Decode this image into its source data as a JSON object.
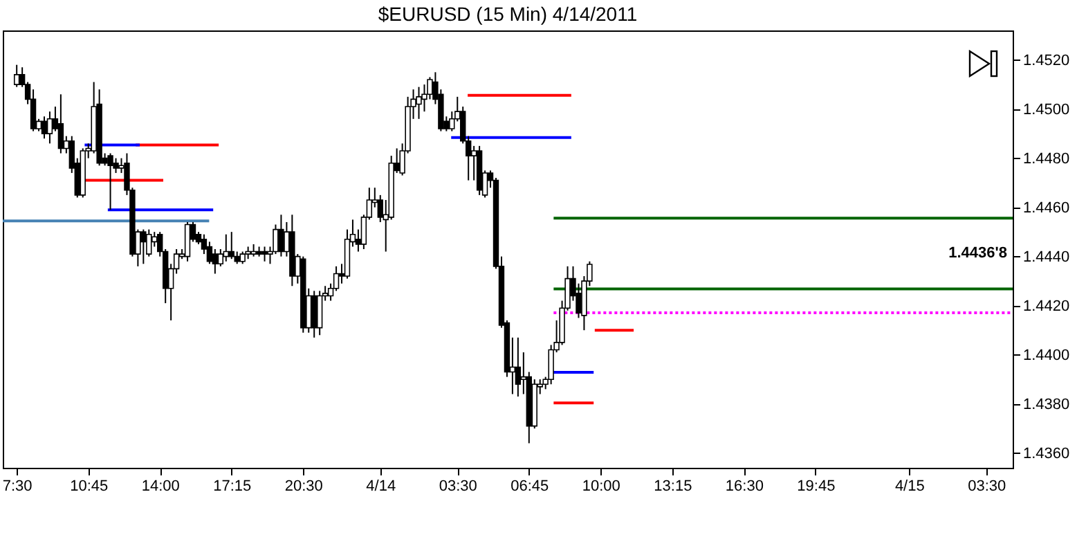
{
  "chart_data": {
    "type": "candlestick",
    "title": "$EURUSD (15 Min)  4/14/2011",
    "x": [
      "2011-04-13T07:30",
      "2011-04-13T07:45",
      "2011-04-13T08:00",
      "2011-04-13T08:15",
      "2011-04-13T08:30",
      "2011-04-13T08:45",
      "2011-04-13T09:00",
      "2011-04-13T09:15",
      "2011-04-13T09:30",
      "2011-04-13T09:45",
      "2011-04-13T10:00",
      "2011-04-13T10:15",
      "2011-04-13T10:30",
      "2011-04-13T10:45",
      "2011-04-13T11:00",
      "2011-04-13T11:15",
      "2011-04-13T11:30",
      "2011-04-13T11:45",
      "2011-04-13T12:00",
      "2011-04-13T12:15",
      "2011-04-13T12:30",
      "2011-04-13T12:45",
      "2011-04-13T13:00",
      "2011-04-13T13:15",
      "2011-04-13T13:30",
      "2011-04-13T13:45",
      "2011-04-13T14:00",
      "2011-04-13T14:15",
      "2011-04-13T14:30",
      "2011-04-13T14:45",
      "2011-04-13T15:00",
      "2011-04-13T15:15",
      "2011-04-13T15:30",
      "2011-04-13T15:45",
      "2011-04-13T16:00",
      "2011-04-13T16:15",
      "2011-04-13T16:30",
      "2011-04-13T16:45",
      "2011-04-13T17:00",
      "2011-04-13T17:15",
      "2011-04-13T17:30",
      "2011-04-13T17:45",
      "2011-04-13T18:00",
      "2011-04-13T18:15",
      "2011-04-13T18:30",
      "2011-04-13T18:45",
      "2011-04-13T19:00",
      "2011-04-13T19:15",
      "2011-04-13T19:30",
      "2011-04-13T19:45",
      "2011-04-13T20:00",
      "2011-04-13T20:15",
      "2011-04-13T20:30",
      "2011-04-13T20:45",
      "2011-04-13T21:00",
      "2011-04-13T21:15",
      "2011-04-13T21:30",
      "2011-04-13T21:45",
      "2011-04-13T22:00",
      "2011-04-13T22:15",
      "2011-04-13T22:30",
      "2011-04-13T22:45",
      "2011-04-13T23:00",
      "2011-04-13T23:15",
      "2011-04-13T23:30",
      "2011-04-13T23:45",
      "2011-04-14T00:00",
      "2011-04-14T00:15",
      "2011-04-14T00:30",
      "2011-04-14T00:45",
      "2011-04-14T01:00",
      "2011-04-14T01:15",
      "2011-04-14T01:30",
      "2011-04-14T01:45",
      "2011-04-14T02:00",
      "2011-04-14T02:15",
      "2011-04-14T02:30",
      "2011-04-14T02:45",
      "2011-04-14T03:00",
      "2011-04-14T03:15",
      "2011-04-14T03:30",
      "2011-04-14T03:45",
      "2011-04-14T04:00",
      "2011-04-14T04:15",
      "2011-04-14T04:30",
      "2011-04-14T04:45",
      "2011-04-14T05:00",
      "2011-04-14T05:15",
      "2011-04-14T05:30",
      "2011-04-14T05:45",
      "2011-04-14T06:00",
      "2011-04-14T06:15",
      "2011-04-14T06:30",
      "2011-04-14T06:45",
      "2011-04-14T07:00",
      "2011-04-14T07:15",
      "2011-04-14T07:30",
      "2011-04-14T07:45",
      "2011-04-14T08:00",
      "2011-04-14T08:15",
      "2011-04-14T08:30",
      "2011-04-14T08:45",
      "2011-04-14T09:00",
      "2011-04-14T09:15",
      "2011-04-14T09:30"
    ],
    "ohlc": [
      [
        1.451,
        1.4518,
        1.4509,
        1.4514
      ],
      [
        1.4514,
        1.4517,
        1.4509,
        1.451
      ],
      [
        1.451,
        1.4511,
        1.4502,
        1.4504
      ],
      [
        1.4504,
        1.4508,
        1.4491,
        1.4492
      ],
      [
        1.4492,
        1.4496,
        1.4491,
        1.4495
      ],
      [
        1.4495,
        1.4497,
        1.4488,
        1.449
      ],
      [
        1.449,
        1.4499,
        1.4486,
        1.4496
      ],
      [
        1.4496,
        1.4501,
        1.4491,
        1.4492
      ],
      [
        1.4494,
        1.4506,
        1.4482,
        1.4484
      ],
      [
        1.4484,
        1.4489,
        1.4482,
        1.4487
      ],
      [
        1.4487,
        1.4489,
        1.4474,
        1.4476
      ],
      [
        1.4478,
        1.448,
        1.4464,
        1.4465
      ],
      [
        1.4465,
        1.4484,
        1.4464,
        1.4483
      ],
      [
        1.4483,
        1.4486,
        1.448,
        1.4484
      ],
      [
        1.4483,
        1.4511,
        1.4482,
        1.4501
      ],
      [
        1.4502,
        1.4508,
        1.4477,
        1.4478
      ],
      [
        1.448,
        1.4482,
        1.4477,
        1.4478
      ],
      [
        1.4481,
        1.4482,
        1.4459,
        1.4477
      ],
      [
        1.4478,
        1.448,
        1.4474,
        1.4476
      ],
      [
        1.4476,
        1.448,
        1.4474,
        1.4477
      ],
      [
        1.4478,
        1.4482,
        1.4465,
        1.4467
      ],
      [
        1.4467,
        1.4468,
        1.444,
        1.4441
      ],
      [
        1.4441,
        1.4451,
        1.4436,
        1.445
      ],
      [
        1.445,
        1.4451,
        1.4437,
        1.4446
      ],
      [
        1.4441,
        1.4451,
        1.444,
        1.4449
      ],
      [
        1.4446,
        1.445,
        1.4444,
        1.4448
      ],
      [
        1.4449,
        1.445,
        1.444,
        1.4442
      ],
      [
        1.4442,
        1.4443,
        1.4421,
        1.4427
      ],
      [
        1.4427,
        1.4437,
        1.4414,
        1.4435
      ],
      [
        1.4435,
        1.4443,
        1.4433,
        1.4441
      ],
      [
        1.444,
        1.4443,
        1.4439,
        1.4441
      ],
      [
        1.444,
        1.4454,
        1.4438,
        1.4453
      ],
      [
        1.4453,
        1.4454,
        1.4446,
        1.4447
      ],
      [
        1.4449,
        1.445,
        1.4445,
        1.4446
      ],
      [
        1.4447,
        1.4449,
        1.4441,
        1.4443
      ],
      [
        1.4444,
        1.4446,
        1.4437,
        1.4438
      ],
      [
        1.4441,
        1.4443,
        1.4433,
        1.4437
      ],
      [
        1.4437,
        1.4443,
        1.4436,
        1.4441
      ],
      [
        1.444,
        1.4449,
        1.4438,
        1.4442
      ],
      [
        1.4442,
        1.445,
        1.4439,
        1.444
      ],
      [
        1.444,
        1.4442,
        1.4437,
        1.4438
      ],
      [
        1.4438,
        1.4442,
        1.4437,
        1.4441
      ],
      [
        1.4441,
        1.4444,
        1.4439,
        1.4442
      ],
      [
        1.4441,
        1.4445,
        1.444,
        1.4442
      ],
      [
        1.4442,
        1.4444,
        1.444,
        1.4441
      ],
      [
        1.4442,
        1.4444,
        1.4438,
        1.4441
      ],
      [
        1.4441,
        1.4444,
        1.4437,
        1.4442
      ],
      [
        1.4442,
        1.4453,
        1.4441,
        1.4451
      ],
      [
        1.4451,
        1.4457,
        1.444,
        1.4442
      ],
      [
        1.4442,
        1.4454,
        1.444,
        1.445
      ],
      [
        1.445,
        1.4457,
        1.4428,
        1.4432
      ],
      [
        1.4432,
        1.4441,
        1.4429,
        1.444
      ],
      [
        1.4439,
        1.444,
        1.4409,
        1.4411
      ],
      [
        1.4411,
        1.4427,
        1.4409,
        1.4424
      ],
      [
        1.4424,
        1.4426,
        1.4407,
        1.4411
      ],
      [
        1.4411,
        1.4426,
        1.4408,
        1.4424
      ],
      [
        1.4424,
        1.4428,
        1.4422,
        1.4425
      ],
      [
        1.4424,
        1.4429,
        1.4422,
        1.4427
      ],
      [
        1.4427,
        1.4436,
        1.4426,
        1.4433
      ],
      [
        1.4433,
        1.4437,
        1.4429,
        1.4432
      ],
      [
        1.4432,
        1.4451,
        1.4431,
        1.4447
      ],
      [
        1.4446,
        1.4455,
        1.4444,
        1.4449
      ],
      [
        1.4447,
        1.4451,
        1.4442,
        1.4445
      ],
      [
        1.4445,
        1.4457,
        1.4443,
        1.4456
      ],
      [
        1.4456,
        1.4468,
        1.4455,
        1.4463
      ],
      [
        1.4462,
        1.4468,
        1.446,
        1.4463
      ],
      [
        1.4463,
        1.4465,
        1.4454,
        1.4456
      ],
      [
        1.4455,
        1.4463,
        1.4442,
        1.4457
      ],
      [
        1.4456,
        1.4481,
        1.4455,
        1.4478
      ],
      [
        1.4478,
        1.4484,
        1.4474,
        1.4475
      ],
      [
        1.4474,
        1.4486,
        1.4473,
        1.4483
      ],
      [
        1.4483,
        1.4505,
        1.4482,
        1.4501
      ],
      [
        1.4501,
        1.4508,
        1.4496,
        1.4504
      ],
      [
        1.4502,
        1.4509,
        1.4496,
        1.4505
      ],
      [
        1.4504,
        1.451,
        1.4499,
        1.4506
      ],
      [
        1.4506,
        1.4513,
        1.4504,
        1.4512
      ],
      [
        1.4511,
        1.4515,
        1.4502,
        1.4504
      ],
      [
        1.4506,
        1.4508,
        1.4491,
        1.4492
      ],
      [
        1.4495,
        1.4497,
        1.4491,
        1.4492
      ],
      [
        1.4492,
        1.4499,
        1.4491,
        1.4496
      ],
      [
        1.4496,
        1.4505,
        1.4495,
        1.4499
      ],
      [
        1.4499,
        1.4501,
        1.4486,
        1.4487
      ],
      [
        1.4487,
        1.4489,
        1.4471,
        1.4481
      ],
      [
        1.4481,
        1.4485,
        1.4471,
        1.4483
      ],
      [
        1.4483,
        1.4485,
        1.4465,
        1.4467
      ],
      [
        1.4465,
        1.4475,
        1.4464,
        1.4474
      ],
      [
        1.4474,
        1.4475,
        1.4468,
        1.4471
      ],
      [
        1.4471,
        1.4472,
        1.4435,
        1.4436
      ],
      [
        1.4436,
        1.444,
        1.4411,
        1.4412
      ],
      [
        1.4413,
        1.4414,
        1.4391,
        1.4393
      ],
      [
        1.4393,
        1.4407,
        1.4384,
        1.4395
      ],
      [
        1.4395,
        1.4407,
        1.4383,
        1.4388
      ],
      [
        1.439,
        1.4401,
        1.4384,
        1.4391
      ],
      [
        1.4391,
        1.4393,
        1.4364,
        1.4371
      ],
      [
        1.4371,
        1.439,
        1.437,
        1.4388
      ],
      [
        1.4387,
        1.439,
        1.4384,
        1.4388
      ],
      [
        1.4388,
        1.4391,
        1.4386,
        1.439
      ],
      [
        1.439,
        1.4404,
        1.4388,
        1.4402
      ],
      [
        1.4402,
        1.4414,
        1.4401,
        1.4405
      ],
      [
        1.4405,
        1.4422,
        1.4404,
        1.4419
      ],
      [
        1.4419,
        1.4436,
        1.4418,
        1.4431
      ],
      [
        1.4431,
        1.4436,
        1.4422,
        1.4424
      ],
      [
        1.4425,
        1.4429,
        1.4415,
        1.4417
      ],
      [
        1.4416,
        1.4432,
        1.441,
        1.443
      ],
      [
        1.443,
        1.4438,
        1.4428,
        1.44368
      ]
    ],
    "series": [
      {
        "type": "line",
        "color": "#4682b4",
        "x": [
          "2011-04-13T06:52",
          "2011-04-13T16:14"
        ],
        "values": [
          1.44545,
          1.44545
        ]
      },
      {
        "type": "line",
        "color": "#0000ff",
        "x": [
          "2011-04-13T11:38",
          "2011-04-13T16:25"
        ],
        "values": [
          1.4459,
          1.4459
        ]
      },
      {
        "type": "line",
        "color": "#ff0000",
        "x": [
          "2011-04-13T10:35",
          "2011-04-13T14:09"
        ],
        "values": [
          1.4471,
          1.4471
        ]
      },
      {
        "type": "line",
        "color": "#ff0000",
        "x": [
          "2011-04-13T12:54",
          "2011-04-13T16:40"
        ],
        "values": [
          1.44854,
          1.44854
        ]
      },
      {
        "type": "line",
        "color": "#0000ff",
        "x": [
          "2011-04-13T10:35",
          "2011-04-13T13:05"
        ],
        "values": [
          1.44854,
          1.44854
        ]
      },
      {
        "type": "line",
        "color": "#ff0000",
        "x": [
          "2011-04-14T03:58",
          "2011-04-14T08:40"
        ],
        "values": [
          1.45056,
          1.45056
        ]
      },
      {
        "type": "line",
        "color": "#0000ff",
        "x": [
          "2011-04-14T03:13",
          "2011-04-14T08:40"
        ],
        "values": [
          1.44884,
          1.44884
        ]
      },
      {
        "type": "line",
        "color": "#006400",
        "x": [
          "2011-04-14T07:52",
          "2011-04-15T04:42"
        ],
        "values": [
          1.44556,
          1.44556
        ]
      },
      {
        "type": "line",
        "color": "#006400",
        "x": [
          "2011-04-14T07:52",
          "2011-04-15T04:42"
        ],
        "values": [
          1.44268,
          1.44268
        ]
      },
      {
        "type": "line",
        "color": "#ff00ff",
        "line_style": "dotted",
        "x": [
          "2011-04-14T07:52",
          "2011-04-15T04:42"
        ],
        "values": [
          1.44171,
          1.44171
        ]
      },
      {
        "type": "line",
        "color": "#ff0000",
        "x": [
          "2011-04-14T09:44",
          "2011-04-14T11:30"
        ],
        "values": [
          1.441,
          1.441
        ]
      },
      {
        "type": "line",
        "color": "#0000ff",
        "x": [
          "2011-04-14T07:44",
          "2011-04-14T09:41"
        ],
        "values": [
          1.43929,
          1.43929
        ]
      },
      {
        "type": "line",
        "color": "#ff0000",
        "x": [
          "2011-04-14T07:52",
          "2011-04-14T09:41"
        ],
        "values": [
          1.43804,
          1.43804
        ]
      }
    ],
    "annotations": [
      "1.4436'8"
    ],
    "xlim": [
      "2011-04-13T06:52",
      "2011-04-15T04:42"
    ],
    "xticks": [
      {
        "value": "2011-04-13T07:30",
        "label": "7:30"
      },
      {
        "value": "2011-04-13T10:45",
        "label": "10:45"
      },
      {
        "value": "2011-04-13T14:00",
        "label": "14:00"
      },
      {
        "value": "2011-04-13T17:15",
        "label": "17:15"
      },
      {
        "value": "2011-04-13T20:30",
        "label": "20:30"
      },
      {
        "value": "2011-04-14",
        "label": "4/14"
      },
      {
        "value": "2011-04-14T03:30",
        "label": "03:30"
      },
      {
        "value": "2011-04-14T06:45",
        "label": "06:45"
      },
      {
        "value": "2011-04-14T10:00",
        "label": "10:00"
      },
      {
        "value": "2011-04-14T13:15",
        "label": "13:15"
      },
      {
        "value": "2011-04-14T16:30",
        "label": "16:30"
      },
      {
        "value": "2011-04-14T19:45",
        "label": "19:45"
      },
      {
        "value": "2011-04-15",
        "label": "4/15"
      },
      {
        "value": "2011-04-15T03:30",
        "label": "03:30"
      }
    ],
    "ylim": [
      1.4354,
      1.4532
    ],
    "yticks": [
      {
        "value": 1.436,
        "label": "1.4360"
      },
      {
        "value": 1.438,
        "label": "1.4380"
      },
      {
        "value": 1.44,
        "label": "1.4400"
      },
      {
        "value": 1.442,
        "label": "1.4420"
      },
      {
        "value": 1.444,
        "label": "1.4440"
      },
      {
        "value": 1.446,
        "label": "1.4460"
      },
      {
        "value": 1.448,
        "label": "1.4480"
      },
      {
        "value": 1.45,
        "label": "1.4500"
      },
      {
        "value": 1.452,
        "label": "1.4520"
      }
    ]
  }
}
